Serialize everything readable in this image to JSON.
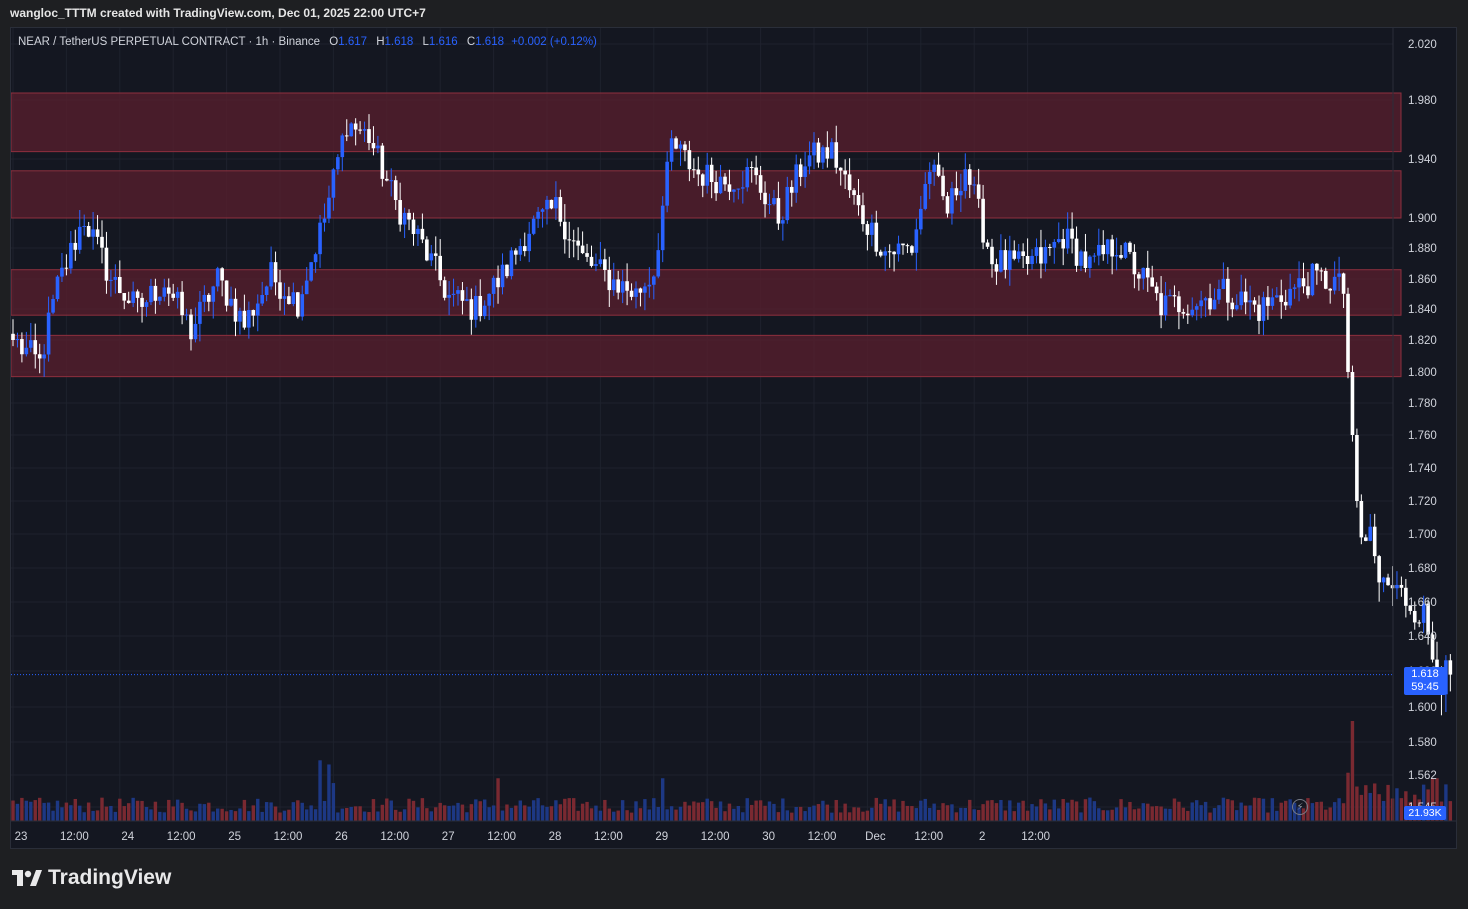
{
  "header": {
    "creator_line": "wangloc_TTTM created with TradingView.com, Dec 01, 2025 22:00 UTC+7"
  },
  "legend": {
    "symbol": "NEAR / TetherUS PERPETUAL CONTRACT · 1h · Binance",
    "o_label": "O",
    "o_value": "1.617",
    "h_label": "H",
    "h_value": "1.618",
    "l_label": "L",
    "l_value": "1.616",
    "c_label": "C",
    "c_value": "1.618",
    "change": "+0.002 (+0.12%)"
  },
  "price_tag": {
    "price": "1.618",
    "countdown": "59:45"
  },
  "volume_tag": "21.93K",
  "footer": {
    "brand": "TradingView"
  },
  "colors": {
    "up": "#2962ff",
    "down": "#ffffff",
    "volume_up": "#1e3a8a",
    "volume_down": "#7f2a33",
    "zone_fill": "#5a1f2d",
    "zone_border": "#8e2f3e",
    "background": "#141721"
  },
  "icons": {
    "timer": "bolt-icon",
    "logo": "tradingview-logo-icon"
  },
  "chart_data": {
    "type": "candlestick",
    "title": "NEAR / TetherUS PERPETUAL CONTRACT · 1h · Binance",
    "ylim": [
      1.545,
      2.03
    ],
    "y_ticks": [
      "2.020",
      "1.980",
      "1.940",
      "1.900",
      "1.880",
      "1.860",
      "1.840",
      "1.820",
      "1.800",
      "1.780",
      "1.760",
      "1.740",
      "1.720",
      "1.700",
      "1.680",
      "1.660",
      "1.640",
      "1.620",
      "1.600",
      "1.580",
      "1.562",
      "1.545"
    ],
    "x_ticks": [
      "23",
      "12:00",
      "24",
      "12:00",
      "25",
      "12:00",
      "26",
      "12:00",
      "27",
      "12:00",
      "28",
      "12:00",
      "29",
      "12:00",
      "30",
      "12:00",
      "Dec",
      "12:00",
      "2",
      "12:00"
    ],
    "last_price": 1.618,
    "zones": [
      {
        "low": 1.945,
        "high": 1.985
      },
      {
        "low": 1.9,
        "high": 1.932
      },
      {
        "low": 1.836,
        "high": 1.866
      },
      {
        "low": 1.797,
        "high": 1.823
      }
    ],
    "anchors": [
      {
        "i": 0,
        "p": 1.82
      },
      {
        "i": 6,
        "p": 1.805
      },
      {
        "i": 10,
        "p": 1.855
      },
      {
        "i": 16,
        "p": 1.9
      },
      {
        "i": 22,
        "p": 1.86
      },
      {
        "i": 28,
        "p": 1.84
      },
      {
        "i": 34,
        "p": 1.858
      },
      {
        "i": 40,
        "p": 1.826
      },
      {
        "i": 46,
        "p": 1.86
      },
      {
        "i": 52,
        "p": 1.83
      },
      {
        "i": 58,
        "p": 1.862
      },
      {
        "i": 64,
        "p": 1.845
      },
      {
        "i": 70,
        "p": 1.9
      },
      {
        "i": 75,
        "p": 1.965
      },
      {
        "i": 80,
        "p": 1.955
      },
      {
        "i": 86,
        "p": 1.91
      },
      {
        "i": 92,
        "p": 1.882
      },
      {
        "i": 98,
        "p": 1.848
      },
      {
        "i": 104,
        "p": 1.84
      },
      {
        "i": 110,
        "p": 1.862
      },
      {
        "i": 116,
        "p": 1.893
      },
      {
        "i": 122,
        "p": 1.907
      },
      {
        "i": 128,
        "p": 1.873
      },
      {
        "i": 134,
        "p": 1.86
      },
      {
        "i": 140,
        "p": 1.85
      },
      {
        "i": 144,
        "p": 1.865
      },
      {
        "i": 148,
        "p": 1.95
      },
      {
        "i": 154,
        "p": 1.93
      },
      {
        "i": 160,
        "p": 1.925
      },
      {
        "i": 166,
        "p": 1.93
      },
      {
        "i": 172,
        "p": 1.9
      },
      {
        "i": 178,
        "p": 1.94
      },
      {
        "i": 184,
        "p": 1.945
      },
      {
        "i": 190,
        "p": 1.905
      },
      {
        "i": 196,
        "p": 1.878
      },
      {
        "i": 202,
        "p": 1.88
      },
      {
        "i": 206,
        "p": 1.935
      },
      {
        "i": 210,
        "p": 1.905
      },
      {
        "i": 214,
        "p": 1.935
      },
      {
        "i": 220,
        "p": 1.872
      },
      {
        "i": 226,
        "p": 1.868
      },
      {
        "i": 232,
        "p": 1.875
      },
      {
        "i": 236,
        "p": 1.888
      },
      {
        "i": 242,
        "p": 1.868
      },
      {
        "i": 248,
        "p": 1.883
      },
      {
        "i": 254,
        "p": 1.86
      },
      {
        "i": 258,
        "p": 1.842
      },
      {
        "i": 266,
        "p": 1.845
      },
      {
        "i": 272,
        "p": 1.852
      },
      {
        "i": 280,
        "p": 1.84
      },
      {
        "i": 286,
        "p": 1.85
      },
      {
        "i": 292,
        "p": 1.86
      },
      {
        "i": 297,
        "p": 1.858
      },
      {
        "i": 299,
        "p": 1.852
      },
      {
        "i": 300,
        "p": 1.8
      },
      {
        "i": 302,
        "p": 1.72
      },
      {
        "i": 303,
        "p": 1.698
      },
      {
        "i": 305,
        "p": 1.695
      },
      {
        "i": 307,
        "p": 1.672
      },
      {
        "i": 310,
        "p": 1.668
      },
      {
        "i": 313,
        "p": 1.662
      },
      {
        "i": 317,
        "p": 1.652
      },
      {
        "i": 319,
        "p": 1.63
      },
      {
        "i": 321,
        "p": 1.615
      },
      {
        "i": 323,
        "p": 1.618
      }
    ],
    "volume_spikes": [
      {
        "i": 69,
        "v": 0.88
      },
      {
        "i": 71,
        "v": 0.82
      },
      {
        "i": 72,
        "v": 0.55
      },
      {
        "i": 109,
        "v": 0.62
      },
      {
        "i": 146,
        "v": 0.62
      },
      {
        "i": 300,
        "v": 0.7
      },
      {
        "i": 301,
        "v": 1.45
      },
      {
        "i": 302,
        "v": 0.5
      },
      {
        "i": 319,
        "v": 0.62
      },
      {
        "i": 320,
        "v": 0.62
      }
    ],
    "volume_max": 1.45
  }
}
